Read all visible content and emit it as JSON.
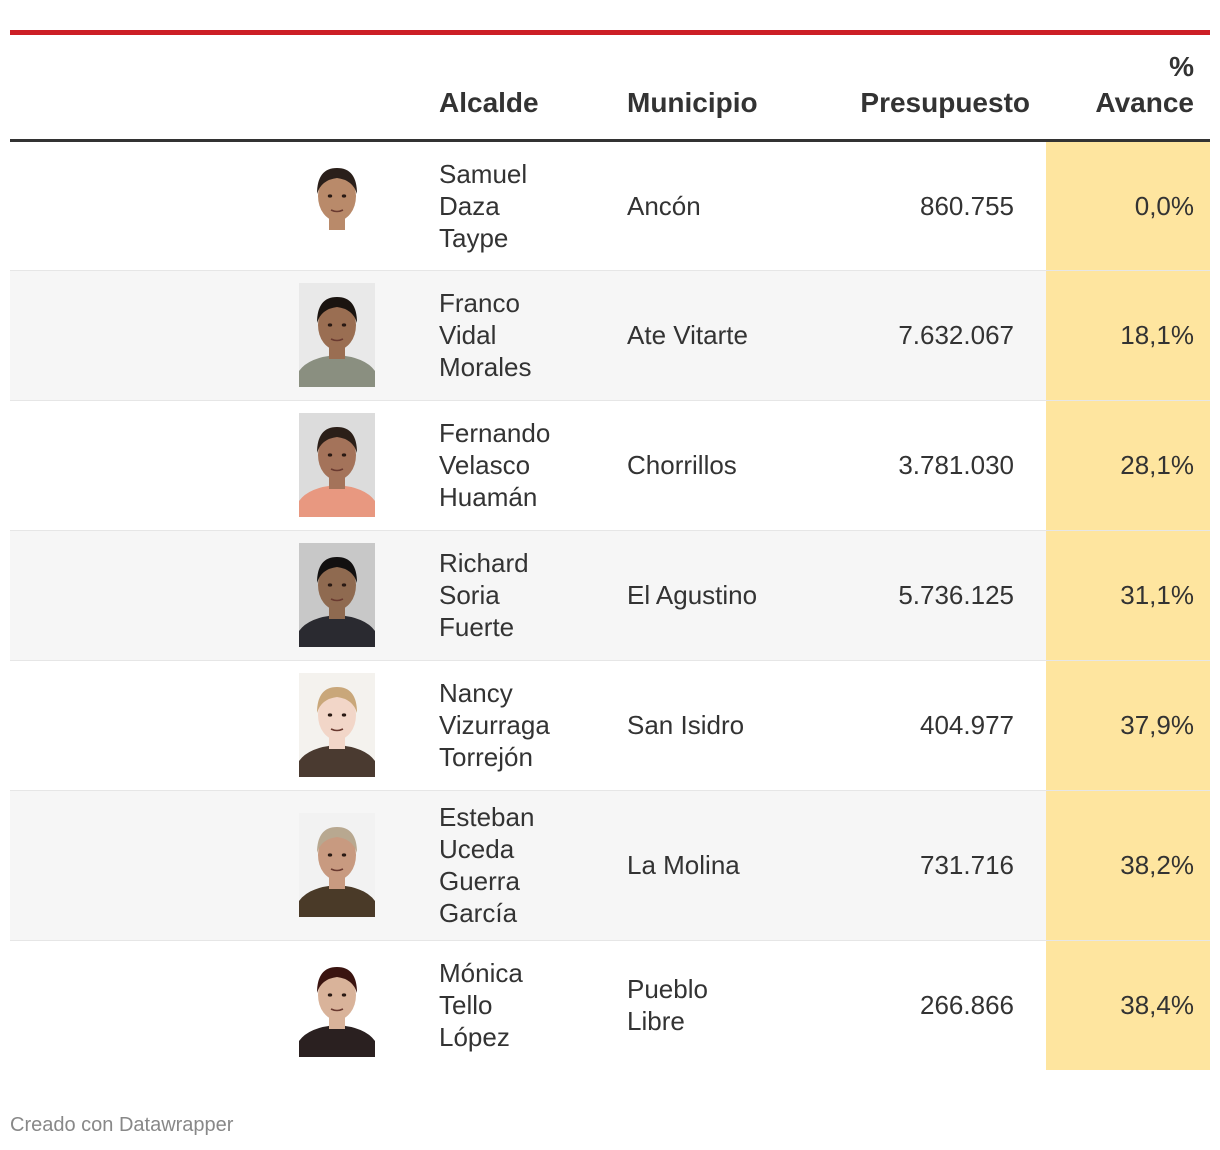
{
  "table": {
    "headers": {
      "alcalde": "Alcalde",
      "municipio": "Municipio",
      "presupuesto": "Presupuesto",
      "avance": "%\nAvance"
    },
    "rows": [
      {
        "alcalde": "Samuel\nDaza\nTaype",
        "municipio": "Ancón",
        "presupuesto": "860.755",
        "avance": "0,0%",
        "photo": {
          "bg": "#ffffff",
          "skin": "#b98a6a",
          "hair": "#2a1f1a",
          "shirt": "#ffffff"
        }
      },
      {
        "alcalde": "Franco\nVidal\nMorales",
        "municipio": "Ate Vitarte",
        "presupuesto": "7.632.067",
        "avance": "18,1%",
        "photo": {
          "bg": "#e9e9e9",
          "skin": "#9a6e52",
          "hair": "#1a1410",
          "shirt": "#8a8f80"
        }
      },
      {
        "alcalde": "Fernando\nVelasco\nHuamán",
        "municipio": "Chorrillos",
        "presupuesto": "3.781.030",
        "avance": "28,1%",
        "photo": {
          "bg": "#dcdcdc",
          "skin": "#a4735a",
          "hair": "#2b1f18",
          "shirt": "#e89880"
        }
      },
      {
        "alcalde": "Richard\nSoria\nFuerte",
        "municipio": "El Agustino",
        "presupuesto": "5.736.125",
        "avance": "31,1%",
        "photo": {
          "bg": "#c8c8c8",
          "skin": "#8f6a50",
          "hair": "#121010",
          "shirt": "#2a2a30"
        }
      },
      {
        "alcalde": "Nancy\nVizurraga\nTorrejón",
        "municipio": "San Isidro",
        "presupuesto": "404.977",
        "avance": "37,9%",
        "photo": {
          "bg": "#f4f2ee",
          "skin": "#f2d6c8",
          "hair": "#c9a77a",
          "shirt": "#4a3a30"
        }
      },
      {
        "alcalde": "Esteban\nUceda\nGuerra\nGarcía",
        "municipio": "La Molina",
        "presupuesto": "731.716",
        "avance": "38,2%",
        "photo": {
          "bg": "#f2f2f2",
          "skin": "#c89a80",
          "hair": "#b8a890",
          "shirt": "#4a3a28"
        }
      },
      {
        "alcalde": "Mónica\nTello\nLópez",
        "municipio": "Pueblo\nLibre",
        "presupuesto": "266.866",
        "avance": "38,4%",
        "photo": {
          "bg": "#ffffff",
          "skin": "#d9b39a",
          "hair": "#3a1410",
          "shirt": "#2a2020"
        }
      }
    ]
  },
  "footer": {
    "credit": "Creado con Datawrapper"
  },
  "colors": {
    "top_rule": "#cc1f26",
    "highlight_column": "#fee59f",
    "row_stripe": "#f6f6f6"
  }
}
